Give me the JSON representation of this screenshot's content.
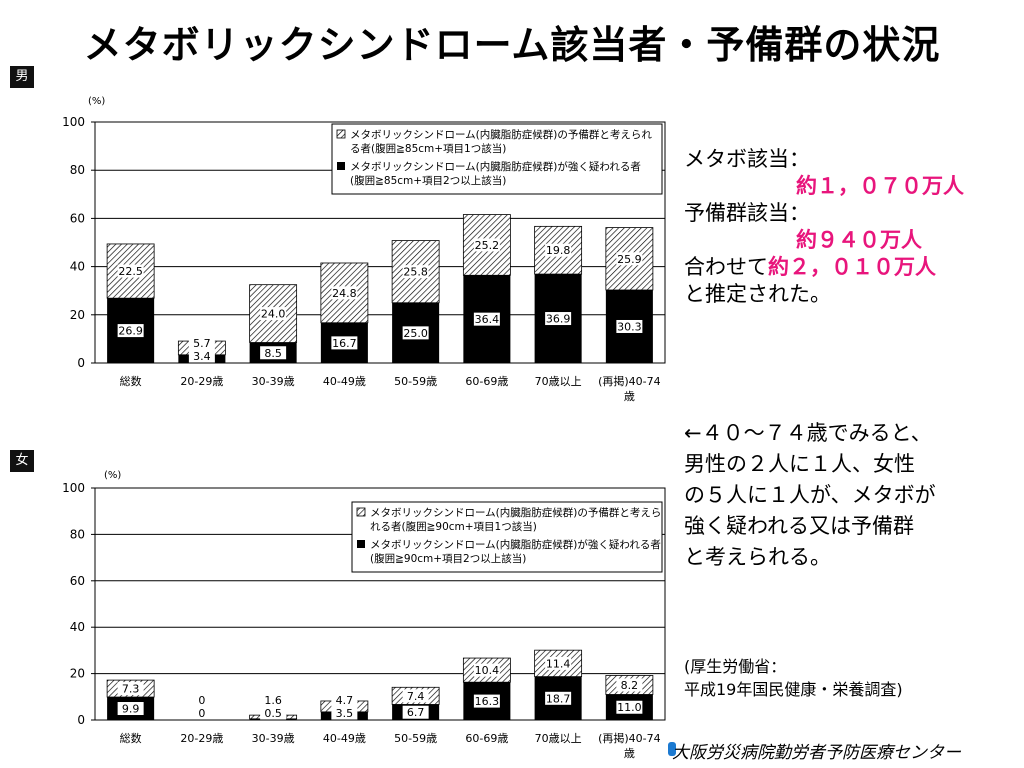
{
  "title": "メタボリックシンドローム該当者・予備群の状況",
  "colors": {
    "highlight": "#e8157c",
    "solid_bar": "#000000",
    "hatched_bar": "#ffffff"
  },
  "summary": {
    "line1": "メタボ該当：",
    "line2": "約１，０７０万人",
    "line3": "予備群該当：",
    "line4": "約９４０万人",
    "line5a": "合わせて",
    "line5b": "約２，０１０万人",
    "line6": "と推定された。"
  },
  "note": {
    "line1": "←４０～７４歳でみると、",
    "line2": "男性の２人に１人、女性",
    "line3": "の５人に１人が、メタボが",
    "line4": "強く疑われる又は予備群",
    "line5": "と考えられる。"
  },
  "source": {
    "line1": "(厚生労働省：",
    "line2": "平成19年国民健康・栄養調査)"
  },
  "footer": "大阪労災病院勤労者予防医療センター",
  "chart_data": [
    {
      "type": "bar",
      "stacked": true,
      "badge": "男",
      "unit": "(%)",
      "ylim": [
        0,
        100
      ],
      "yticks": [
        0,
        20,
        40,
        60,
        80,
        100
      ],
      "categories": [
        "総数",
        "20-29歳",
        "30-39歳",
        "40-49歳",
        "50-59歳",
        "60-69歳",
        "70歳以上",
        "(再掲)40-74歳"
      ],
      "series": [
        {
          "name": "メタボリックシンドローム(内臓脂肪症候群)が強く疑われる者(腹囲≧85cm+項目2つ以上該当)",
          "legend_line1": "メタボリックシンドローム(内臓脂肪症候群)が強く疑われる者",
          "legend_line2": "(腹囲≧85cm+項目2つ以上該当)",
          "pattern": "solid",
          "values": [
            26.9,
            3.4,
            8.5,
            16.7,
            25.0,
            36.4,
            36.9,
            30.3
          ],
          "labels": [
            "26.9",
            "3.4",
            "8.5",
            "16.7",
            "25.0",
            "36.4",
            "36.9",
            "30.3"
          ]
        },
        {
          "name": "メタボリックシンドローム(内臓脂肪症候群)の予備群と考えられる者(腹囲≧85cm+項目1つ該当)",
          "legend_line1": "メタボリックシンドローム(内臓脂肪症候群)の予備群と考えられ",
          "legend_line2": "る者(腹囲≧85cm+項目1つ該当)",
          "pattern": "hatched",
          "values": [
            22.5,
            5.7,
            24.0,
            24.8,
            25.8,
            25.2,
            19.8,
            25.9
          ],
          "labels": [
            "22.5",
            "5.7",
            "24.0",
            "24.8",
            "25.8",
            "25.2",
            "19.8",
            "25.9"
          ]
        }
      ]
    },
    {
      "type": "bar",
      "stacked": true,
      "badge": "女",
      "unit": "(%)",
      "ylim": [
        0,
        100
      ],
      "yticks": [
        0,
        20,
        40,
        60,
        80,
        100
      ],
      "categories": [
        "総数",
        "20-29歳",
        "30-39歳",
        "40-49歳",
        "50-59歳",
        "60-69歳",
        "70歳以上",
        "(再掲)40-74歳"
      ],
      "series": [
        {
          "name": "メタボリックシンドローム(内臓脂肪症候群)が強く疑われる者(腹囲≧90cm+項目2つ以上該当)",
          "legend_line1": "メタボリックシンドローム(内臓脂肪症候群)が強く疑われる者",
          "legend_line2": "(腹囲≧90cm+項目2つ以上該当)",
          "pattern": "solid",
          "values": [
            9.9,
            0,
            0.5,
            3.5,
            6.7,
            16.3,
            18.7,
            11.0
          ],
          "labels": [
            "9.9",
            "0",
            "0.5",
            "3.5",
            "6.7",
            "16.3",
            "18.7",
            "11.0"
          ]
        },
        {
          "name": "メタボリックシンドローム(内臓脂肪症候群)の予備群と考えられる者(腹囲≧90cm+項目1つ該当)",
          "legend_line1": "メタボリックシンドローム(内臓脂肪症候群)の予備群と考えら",
          "legend_line2": "れる者(腹囲≧90cm+項目1つ該当)",
          "pattern": "hatched",
          "values": [
            7.3,
            0,
            1.6,
            4.7,
            7.4,
            10.4,
            11.4,
            8.2
          ],
          "labels": [
            "7.3",
            "0",
            "1.6",
            "4.7",
            "7.4",
            "10.4",
            "11.4",
            "8.2"
          ]
        }
      ]
    }
  ]
}
